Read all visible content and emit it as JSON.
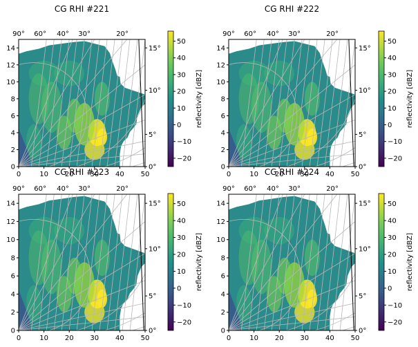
{
  "chart_data": [
    {
      "type": "heatmap",
      "title": "CG RHI #221",
      "xticks": [
        "0",
        "10",
        "20",
        "30",
        "40",
        "50"
      ],
      "yticks": [
        "0",
        "2",
        "4",
        "6",
        "8",
        "10",
        "12",
        "14"
      ],
      "xlim": [
        0,
        50
      ],
      "ylim": [
        0,
        15
      ],
      "elevation_ticks": [
        "0°",
        "5°",
        "10°",
        "15°"
      ],
      "azimuth_ticks": [
        "90°",
        "60°",
        "40°",
        "30°",
        "20°"
      ],
      "colorbar": {
        "label": "reflectivity [dBZ]",
        "ticks": [
          "−20",
          "−10",
          "0",
          "10",
          "20",
          "30",
          "40",
          "50"
        ],
        "range": [
          -25,
          56
        ]
      }
    },
    {
      "type": "heatmap",
      "title": "CG RHI #222",
      "xticks": [
        "0",
        "10",
        "20",
        "30",
        "40",
        "50"
      ],
      "yticks": [
        "0",
        "2",
        "4",
        "6",
        "8",
        "10",
        "12",
        "14"
      ],
      "xlim": [
        0,
        50
      ],
      "ylim": [
        0,
        15
      ],
      "elevation_ticks": [
        "0°",
        "5°",
        "10°",
        "15°"
      ],
      "azimuth_ticks": [
        "90°",
        "60°",
        "40°",
        "30°",
        "20°"
      ],
      "colorbar": {
        "label": "reflectivity [dBZ]",
        "ticks": [
          "−20",
          "−10",
          "0",
          "10",
          "20",
          "30",
          "40",
          "50"
        ],
        "range": [
          -25,
          56
        ]
      }
    },
    {
      "type": "heatmap",
      "title": "CG RHI #223",
      "xticks": [
        "0",
        "10",
        "20",
        "30",
        "40",
        "50"
      ],
      "yticks": [
        "0",
        "2",
        "4",
        "6",
        "8",
        "10",
        "12",
        "14"
      ],
      "xlim": [
        0,
        50
      ],
      "ylim": [
        0,
        15
      ],
      "elevation_ticks": [
        "0°",
        "5°",
        "10°",
        "15°"
      ],
      "azimuth_ticks": [
        "90°",
        "60°",
        "40°",
        "30°",
        "20°"
      ],
      "colorbar": {
        "label": "reflectivity [dBZ]",
        "ticks": [
          "−20",
          "−10",
          "0",
          "10",
          "20",
          "30",
          "40",
          "50"
        ],
        "range": [
          -25,
          56
        ]
      }
    },
    {
      "type": "heatmap",
      "title": "CG RHI #224",
      "xticks": [
        "0",
        "10",
        "20",
        "30",
        "40",
        "50"
      ],
      "yticks": [
        "0",
        "2",
        "4",
        "6",
        "8",
        "10",
        "12",
        "14"
      ],
      "xlim": [
        0,
        50
      ],
      "ylim": [
        0,
        15
      ],
      "elevation_ticks": [
        "0°",
        "5°",
        "10°",
        "15°"
      ],
      "azimuth_ticks": [
        "90°",
        "60°",
        "40°",
        "30°",
        "20°"
      ],
      "colorbar": {
        "label": "reflectivity [dBZ]",
        "ticks": [
          "−20",
          "−10",
          "0",
          "10",
          "20",
          "30",
          "40",
          "50"
        ],
        "range": [
          -25,
          56
        ]
      }
    }
  ],
  "colors": {
    "colormap": [
      "#440154",
      "#3b528b",
      "#21918c",
      "#5ec962",
      "#fde725"
    ],
    "grid_line": "#b8b8b8",
    "echo_base": "#2a8b8a"
  }
}
